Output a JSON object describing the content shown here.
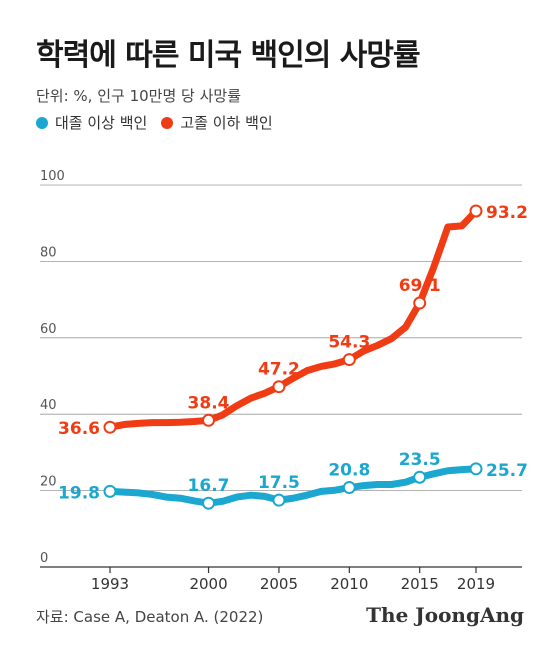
{
  "chart_data": {
    "type": "line",
    "title": "학력에 따른 미국 백인의 사망률",
    "subtitle": "단위: %, 인구 10만명 당 사망률",
    "source": "자료: Case A, Deaton A. (2022)",
    "brand": "The JoongAng",
    "ylim": [
      0,
      100
    ],
    "yticks": [
      0,
      20,
      40,
      60,
      80,
      100
    ],
    "xlim": [
      1989,
      2022
    ],
    "xticks": [
      1993,
      2000,
      2005,
      2010,
      2015,
      2019
    ],
    "grid": true,
    "legend_position": "top-left",
    "series": [
      {
        "name": "대졸 이상 백인",
        "color": "#1ba7cf",
        "x": [
          1993,
          1994,
          1995,
          1996,
          1997,
          1998,
          1999,
          2000,
          2001,
          2002,
          2003,
          2004,
          2005,
          2006,
          2007,
          2008,
          2009,
          2010,
          2011,
          2012,
          2013,
          2014,
          2015,
          2016,
          2017,
          2018,
          2019
        ],
        "values": [
          19.8,
          19.6,
          19.4,
          19.0,
          18.3,
          18.0,
          17.3,
          16.7,
          17.2,
          18.3,
          18.8,
          18.5,
          17.5,
          18.0,
          18.8,
          19.8,
          20.1,
          20.8,
          21.3,
          21.6,
          21.6,
          22.2,
          23.5,
          24.4,
          25.2,
          25.5,
          25.7
        ],
        "labeled": [
          {
            "x": 1993,
            "value": "19.8"
          },
          {
            "x": 2000,
            "value": "16.7"
          },
          {
            "x": 2005,
            "value": "17.5"
          },
          {
            "x": 2010,
            "value": "20.8"
          },
          {
            "x": 2015,
            "value": "23.5"
          },
          {
            "x": 2019,
            "value": "25.7"
          }
        ]
      },
      {
        "name": "고졸 이하 백인",
        "color": "#f03c14",
        "x": [
          1993,
          1994,
          1995,
          1996,
          1997,
          1998,
          1999,
          2000,
          2001,
          2002,
          2003,
          2004,
          2005,
          2006,
          2007,
          2008,
          2009,
          2010,
          2011,
          2012,
          2013,
          2014,
          2015,
          2016,
          2017,
          2018,
          2019
        ],
        "values": [
          36.6,
          37.3,
          37.6,
          37.8,
          37.8,
          37.9,
          38.1,
          38.4,
          39.8,
          42.2,
          44.2,
          45.5,
          47.2,
          49.4,
          51.4,
          52.5,
          53.2,
          54.3,
          56.5,
          58.0,
          59.8,
          62.8,
          69.1,
          78.5,
          89.0,
          89.3,
          93.2
        ],
        "labeled": [
          {
            "x": 1993,
            "value": "36.6"
          },
          {
            "x": 2000,
            "value": "38.4"
          },
          {
            "x": 2005,
            "value": "47.2"
          },
          {
            "x": 2010,
            "value": "54.3"
          },
          {
            "x": 2015,
            "value": "69.1"
          },
          {
            "x": 2019,
            "value": "93.2"
          }
        ]
      }
    ]
  }
}
